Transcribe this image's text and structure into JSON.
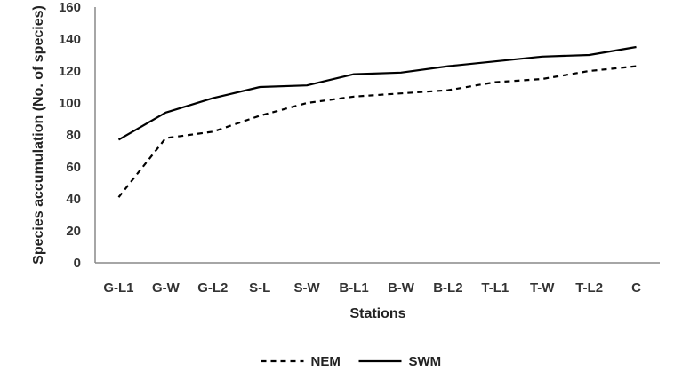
{
  "chart_data": {
    "type": "line",
    "title": "",
    "xlabel": "Stations",
    "ylabel": "Species accumulation (No. of species)",
    "categories": [
      "G-L1",
      "G-W",
      "G-L2",
      "S-L",
      "S-W",
      "B-L1",
      "B-W",
      "B-L2",
      "T-L1",
      "T-W",
      "T-L2",
      "C"
    ],
    "ylim": [
      0,
      160
    ],
    "yticks": [
      0,
      20,
      40,
      60,
      80,
      100,
      120,
      140,
      160
    ],
    "grid": false,
    "legend_position": "bottom",
    "series": [
      {
        "name": "NEM",
        "style": "dashed",
        "color": "#000000",
        "values": [
          41,
          78,
          82,
          92,
          100,
          104,
          106,
          108,
          113,
          115,
          120,
          123
        ]
      },
      {
        "name": "SWM",
        "style": "solid",
        "color": "#000000",
        "values": [
          77,
          94,
          103,
          110,
          111,
          118,
          119,
          123,
          126,
          129,
          130,
          135
        ]
      }
    ]
  }
}
